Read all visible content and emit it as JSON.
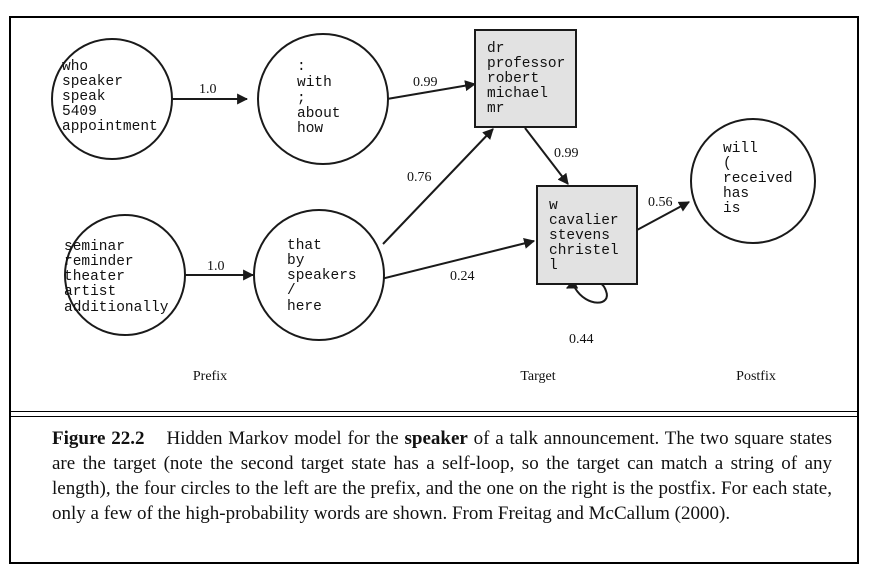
{
  "states": {
    "prefix_top_left": [
      "who",
      "speaker",
      "speak",
      "5409",
      "appointment"
    ],
    "prefix_top_right": [
      ":",
      "with",
      ";",
      "about",
      "how"
    ],
    "prefix_bottom_left": [
      "seminar",
      "reminder",
      "theater",
      "artist",
      "additionally"
    ],
    "prefix_bottom_right": [
      "that",
      "by",
      "speakers",
      "/",
      "here"
    ],
    "target_1": [
      "dr",
      "professor",
      "robert",
      "michael",
      "mr"
    ],
    "target_2": [
      "w",
      "cavalier",
      "stevens",
      "christel",
      "l"
    ],
    "postfix": [
      "will",
      "(",
      "received",
      "has",
      "is"
    ]
  },
  "edges": {
    "tl_to_tr": "1.0",
    "bl_to_br": "1.0",
    "tr_to_t1": "0.99",
    "br_to_t1": "0.76",
    "br_to_t2": "0.24",
    "t1_to_t2": "0.99",
    "t2_self": "0.44",
    "t2_to_post": "0.56"
  },
  "section_labels": {
    "prefix": "Prefix",
    "target": "Target",
    "postfix": "Postfix"
  },
  "caption": {
    "label": "Figure 22.2",
    "text_before": "Hidden Markov model for the ",
    "emphasis": "speaker",
    "text_after": " of a talk announcement. The two square states are the target (note the second target state has a self-loop, so the target can match a string of any length), the four circles to the left are the prefix, and the one on the right is the postfix. For each state, only a few of the high-probability words are shown. From Freitag and McCallum (2000)."
  },
  "colors": {
    "target_fill": "#e2e2e2",
    "stroke": "#1a1a1a"
  }
}
